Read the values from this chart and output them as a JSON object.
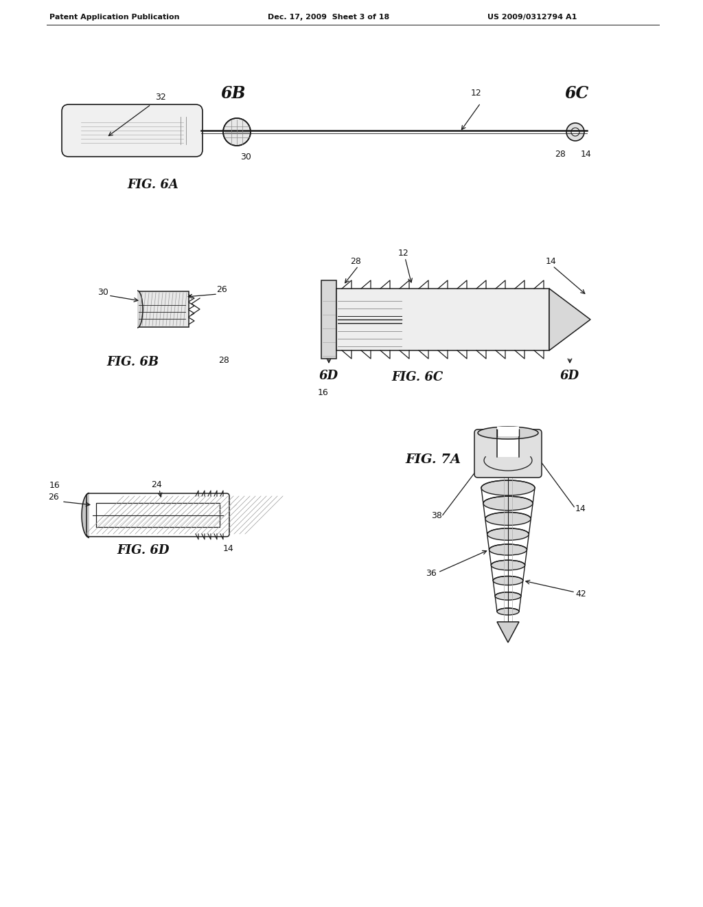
{
  "bg_color": "#ffffff",
  "lc": "#1a1a1a",
  "header_left": "Patent Application Publication",
  "header_mid": "Dec. 17, 2009  Sheet 3 of 18",
  "header_right": "US 2009/0312794 A1",
  "fig6a_label": "FIG. 6A",
  "fig6b_label": "FIG. 6B",
  "fig6c_label": "FIG. 6C",
  "fig6d_label": "FIG. 6D",
  "fig7a_label": "FIG. 7A"
}
